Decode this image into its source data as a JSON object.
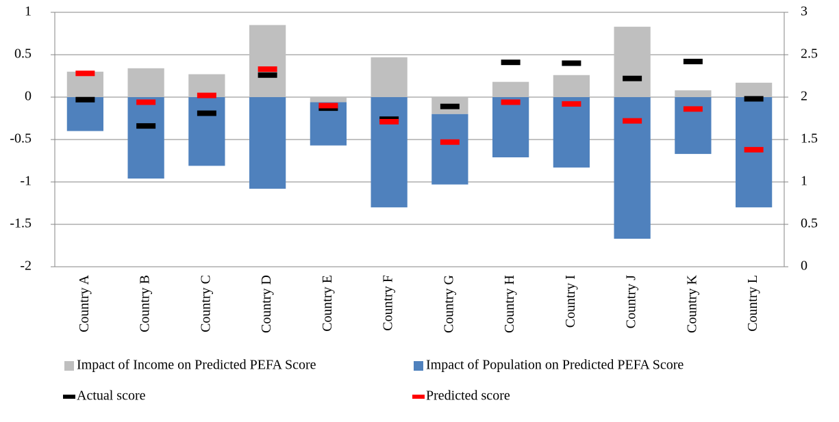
{
  "chart_data": {
    "type": "bar",
    "categories": [
      "Country A",
      "Country B",
      "Country C",
      "Country D",
      "Country E",
      "Country F",
      "Country G",
      "Country H",
      "Country I",
      "Country J",
      "Country K",
      "Country L"
    ],
    "series": [
      {
        "name": "Impact of Income on Predicted PEFA Score",
        "color": "#bfbfbf",
        "values": [
          0.3,
          0.34,
          0.27,
          0.85,
          -0.06,
          0.47,
          -0.2,
          0.18,
          0.26,
          0.83,
          0.08,
          0.17
        ]
      },
      {
        "name": "Impact of Population on Predicted PEFA Score",
        "color": "#4f81bd",
        "values": [
          -0.4,
          -0.96,
          -0.81,
          -1.08,
          -0.51,
          -1.3,
          -0.83,
          -0.71,
          -0.83,
          -1.67,
          -0.67,
          -1.3
        ]
      },
      {
        "name": "Actual score",
        "color": "#000000",
        "axis": "y2",
        "values": [
          1.97,
          1.66,
          1.81,
          2.26,
          1.87,
          1.74,
          1.89,
          2.41,
          2.4,
          2.22,
          2.42,
          1.98
        ]
      },
      {
        "name": "Predicted score",
        "color": "#ff0000",
        "axis": "y2",
        "values": [
          2.28,
          1.94,
          2.02,
          2.33,
          1.9,
          1.71,
          1.47,
          1.94,
          1.92,
          1.72,
          1.86,
          1.38
        ]
      }
    ],
    "stacked": true,
    "ylim": [
      -2,
      1
    ],
    "yticks": [
      -2,
      -1.5,
      -1,
      -0.5,
      0,
      0.5,
      1
    ],
    "y2lim": [
      0,
      3
    ],
    "y2ticks": [
      0,
      0.5,
      1,
      1.5,
      2,
      2.5,
      3
    ],
    "grid": true
  }
}
